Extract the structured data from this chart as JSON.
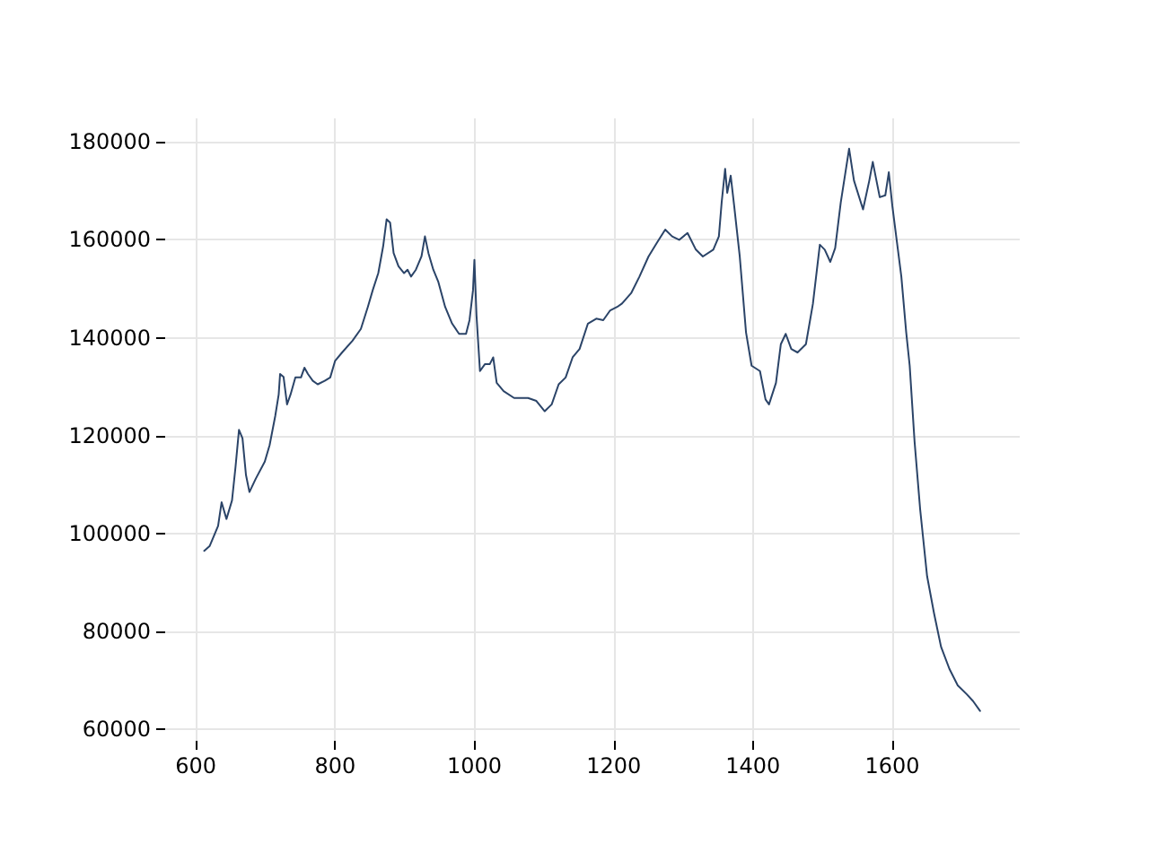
{
  "chart_data": {
    "type": "line",
    "xlim": [
      556,
      1783
    ],
    "ylim": [
      57700,
      184800
    ],
    "xticks": [
      600,
      800,
      1000,
      1200,
      1400,
      1600
    ],
    "yticks": [
      60000,
      80000,
      100000,
      120000,
      140000,
      160000,
      180000
    ],
    "grid": true,
    "marker": "none",
    "line_style": "solid",
    "series": [
      {
        "color": "#2b4468",
        "x": [
          612,
          620,
          632,
          637,
          644,
          652,
          657,
          662,
          667,
          672,
          677,
          686,
          699,
          706,
          714,
          719,
          721,
          726,
          731,
          736,
          743,
          751,
          756,
          761,
          768,
          775,
          785,
          793,
          800,
          810,
          825,
          837,
          847,
          854,
          862,
          869,
          874,
          879,
          884,
          891,
          899,
          904,
          909,
          916,
          924,
          929,
          934,
          941,
          948,
          958,
          968,
          978,
          988,
          993,
          998,
          1000,
          1003,
          1008,
          1015,
          1022,
          1027,
          1032,
          1042,
          1057,
          1077,
          1089,
          1101,
          1111,
          1121,
          1131,
          1141,
          1151,
          1163,
          1175,
          1185,
          1195,
          1205,
          1212,
          1225,
          1237,
          1250,
          1262,
          1274,
          1284,
          1294,
          1306,
          1318,
          1328,
          1343,
          1351,
          1355,
          1360,
          1363,
          1368,
          1373,
          1381,
          1390,
          1398,
          1410,
          1418,
          1423,
          1433,
          1440,
          1447,
          1455,
          1464,
          1476,
          1486,
          1496,
          1503,
          1511,
          1518,
          1526,
          1538,
          1545,
          1558,
          1567,
          1572,
          1582,
          1590,
          1595,
          1600,
          1613,
          1620,
          1625,
          1632,
          1640,
          1650,
          1660,
          1670,
          1682,
          1694,
          1707,
          1716,
          1726
        ],
        "values": [
          96500,
          97500,
          101600,
          106400,
          103000,
          106800,
          113600,
          121200,
          119500,
          112000,
          108500,
          111200,
          114700,
          118100,
          124000,
          128400,
          132600,
          132000,
          126400,
          128400,
          131900,
          131900,
          133900,
          132600,
          131200,
          130500,
          131200,
          131900,
          135300,
          137000,
          139400,
          141800,
          146300,
          149700,
          153200,
          158700,
          164200,
          163500,
          157300,
          154600,
          153200,
          153900,
          152500,
          153900,
          156600,
          160700,
          157300,
          153900,
          151500,
          146300,
          142900,
          140800,
          140800,
          143600,
          149700,
          155900,
          144600,
          133200,
          134600,
          134600,
          136000,
          130800,
          129100,
          127700,
          127700,
          127100,
          125000,
          126400,
          130500,
          131900,
          136000,
          137700,
          142900,
          143900,
          143600,
          145600,
          146300,
          147000,
          149100,
          152500,
          156600,
          159400,
          162100,
          160700,
          160000,
          161400,
          158000,
          156600,
          158000,
          160700,
          167600,
          174500,
          169600,
          173100,
          166900,
          156600,
          141100,
          134300,
          133200,
          127400,
          126400,
          130800,
          138700,
          140800,
          137700,
          137000,
          138700,
          146900,
          159000,
          158000,
          155500,
          158300,
          167600,
          178600,
          172100,
          166200,
          172100,
          175900,
          168700,
          169100,
          173800,
          167000,
          152500,
          141100,
          134300,
          118800,
          105000,
          91300,
          83700,
          76900,
          72400,
          69000,
          67200,
          65800,
          63800
        ]
      }
    ]
  }
}
